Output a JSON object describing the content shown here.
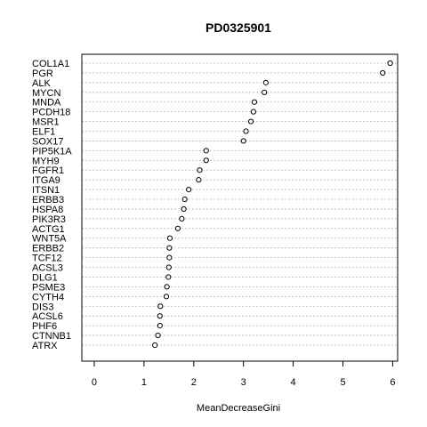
{
  "chart_data": {
    "type": "scatter",
    "title": "PD0325901",
    "xlabel": "MeanDecreaseGini",
    "ylabel": "",
    "xlim": [
      -0.25,
      6.1
    ],
    "xticks": [
      "0",
      "1",
      "2",
      "3",
      "4",
      "5",
      "6"
    ],
    "grid": "dotted horizontal guide lines",
    "categories": [
      "COL1A1",
      "PGR",
      "ALK",
      "MYCN",
      "MNDA",
      "PCDH18",
      "MSR1",
      "ELF1",
      "SOX17",
      "PIP5K1A",
      "MYH9",
      "FGFR1",
      "ITGA9",
      "ITSN1",
      "ERBB3",
      "HSPA8",
      "PIK3R3",
      "ACTG1",
      "WNT5A",
      "ERBB2",
      "TCF12",
      "ACSL3",
      "DLG1",
      "PSME3",
      "CYTH4",
      "DIS3",
      "ACSL6",
      "PHF6",
      "CTNNB1",
      "ATRX"
    ],
    "values": [
      5.95,
      5.8,
      3.45,
      3.42,
      3.22,
      3.2,
      3.15,
      3.05,
      3.0,
      2.25,
      2.25,
      2.12,
      2.1,
      1.9,
      1.82,
      1.8,
      1.76,
      1.68,
      1.52,
      1.51,
      1.51,
      1.5,
      1.49,
      1.46,
      1.45,
      1.33,
      1.32,
      1.32,
      1.28,
      1.22
    ]
  }
}
